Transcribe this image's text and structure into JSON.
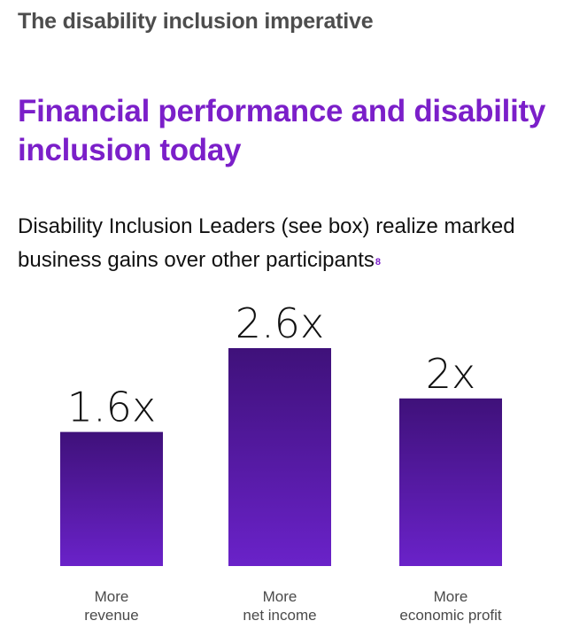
{
  "header": {
    "eyebrow": "The disability inclusion imperative",
    "title": "Financial performance and disability inclusion today",
    "subtitle": "Disability Inclusion Leaders (see box) realize marked business gains over other participants",
    "footnote_ref": "8"
  },
  "colors": {
    "accent": "#7B1FC9",
    "bar_top": "#3F117A",
    "bar_bottom": "#6A22C9",
    "text": "#111111",
    "eyebrow_text": "#4d4d4d",
    "category_text": "#4a4a4a"
  },
  "chart_data": {
    "type": "bar",
    "categories": [
      [
        "More",
        "revenue"
      ],
      [
        "More",
        "net income"
      ],
      [
        "More",
        "economic profit"
      ]
    ],
    "values": [
      1.6,
      2.6,
      2.0
    ],
    "value_labels": [
      "1.6x",
      "2.6x",
      "2x"
    ],
    "ylim": [
      0,
      2.6
    ],
    "grid": false,
    "legend": "none",
    "xlabel": "",
    "ylabel": ""
  }
}
